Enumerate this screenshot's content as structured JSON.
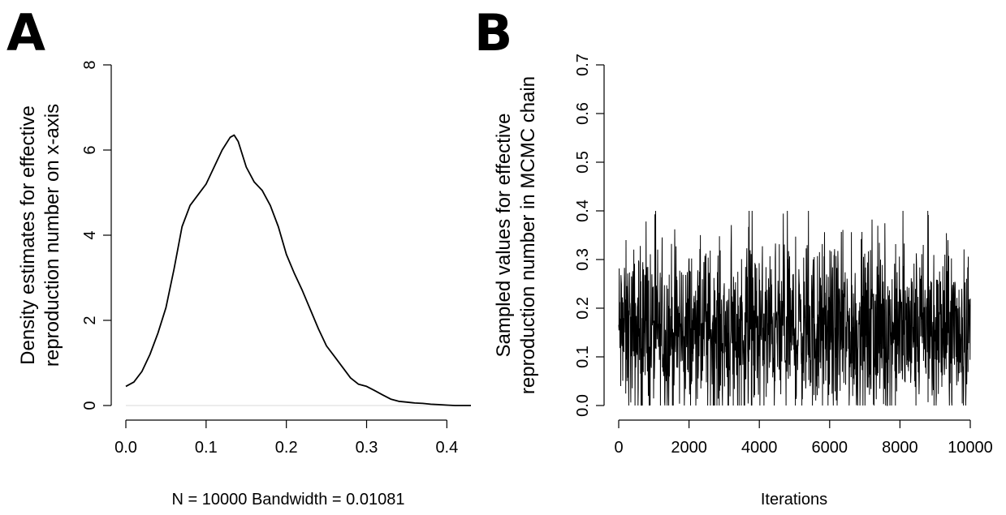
{
  "panel_labels": [
    "A",
    "B"
  ],
  "chart_data": [
    {
      "type": "line",
      "panel": "A",
      "ylabel_lines": [
        "Density estimates for effective",
        "reproduction number on x-axis"
      ],
      "xlabel": "N = 10000   Bandwidth = 0.01081",
      "xlim": [
        0.0,
        0.43
      ],
      "ylim": [
        0,
        8
      ],
      "x_ticks": [
        0.0,
        0.1,
        0.2,
        0.3,
        0.4
      ],
      "x_tick_labels": [
        "0.0",
        "0.1",
        "0.2",
        "0.3",
        "0.4"
      ],
      "y_ticks": [
        0,
        2,
        4,
        6,
        8
      ],
      "y_tick_labels": [
        "0",
        "2",
        "4",
        "6",
        "8"
      ],
      "grid": false,
      "x": [
        0.0,
        0.01,
        0.02,
        0.03,
        0.04,
        0.05,
        0.06,
        0.07,
        0.08,
        0.09,
        0.1,
        0.11,
        0.12,
        0.13,
        0.135,
        0.14,
        0.15,
        0.16,
        0.17,
        0.18,
        0.19,
        0.2,
        0.21,
        0.22,
        0.23,
        0.24,
        0.25,
        0.26,
        0.27,
        0.28,
        0.29,
        0.3,
        0.31,
        0.32,
        0.33,
        0.34,
        0.35,
        0.36,
        0.37,
        0.38,
        0.39,
        0.4,
        0.41,
        0.42,
        0.43
      ],
      "y": [
        0.45,
        0.55,
        0.8,
        1.2,
        1.7,
        2.3,
        3.2,
        4.2,
        4.7,
        4.95,
        5.2,
        5.6,
        6.0,
        6.3,
        6.35,
        6.2,
        5.6,
        5.25,
        5.05,
        4.7,
        4.2,
        3.55,
        3.1,
        2.7,
        2.25,
        1.8,
        1.4,
        1.15,
        0.9,
        0.65,
        0.5,
        0.45,
        0.35,
        0.25,
        0.15,
        0.1,
        0.08,
        0.06,
        0.05,
        0.03,
        0.02,
        0.01,
        0.0,
        0.0,
        0.0
      ]
    },
    {
      "type": "line",
      "panel": "B",
      "ylabel_lines": [
        "Sampled values for effective",
        "reproduction number in MCMC chain"
      ],
      "xlabel": "Iterations",
      "xlim": [
        0,
        10000
      ],
      "ylim": [
        0.0,
        0.7
      ],
      "x_ticks": [
        0,
        2000,
        4000,
        6000,
        8000,
        10000
      ],
      "x_tick_labels": [
        "0",
        "2000",
        "4000",
        "6000",
        "8000",
        "10000"
      ],
      "y_ticks": [
        0.0,
        0.1,
        0.2,
        0.3,
        0.4,
        0.5,
        0.6,
        0.7
      ],
      "y_tick_labels": [
        "0.0",
        "0.1",
        "0.2",
        "0.3",
        "0.4",
        "0.5",
        "0.6",
        "0.7"
      ],
      "grid": false,
      "n_samples": 10000,
      "value_min": 0.0,
      "value_max": 0.4,
      "approx_mean": 0.15
    }
  ]
}
